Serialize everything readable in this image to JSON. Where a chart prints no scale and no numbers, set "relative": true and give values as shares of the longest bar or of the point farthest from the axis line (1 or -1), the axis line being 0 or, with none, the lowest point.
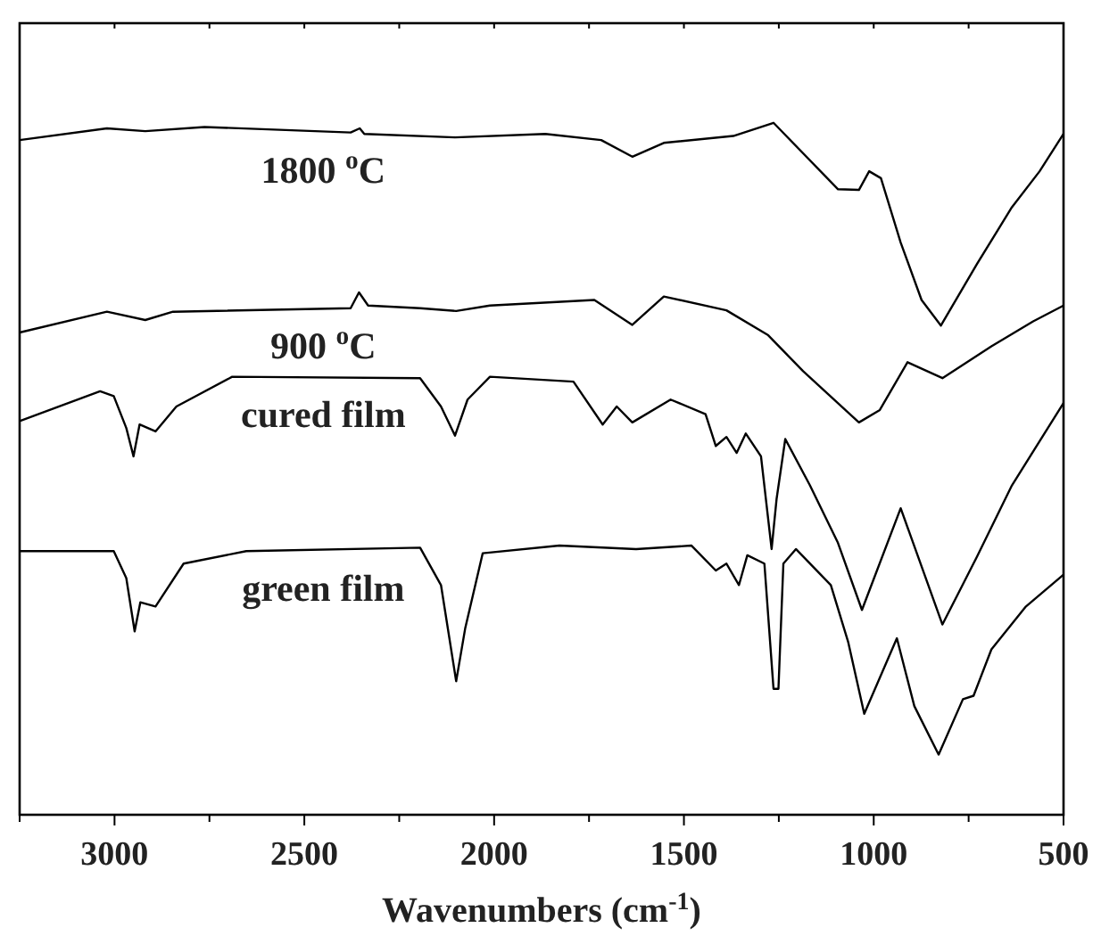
{
  "chart_data": {
    "type": "line",
    "relative": true,
    "xlabel": "Wavenumbers (cm$^{-1}$)",
    "xlim": [
      3250,
      500
    ],
    "xticks": [
      {
        "value": 3250,
        "label": null
      },
      3000,
      {
        "value": 2750,
        "label": null
      },
      2500,
      {
        "value": 2250,
        "label": null
      },
      2000,
      {
        "value": 1750,
        "label": null
      },
      1500,
      {
        "value": 1250,
        "label": null
      },
      1000,
      {
        "value": 750,
        "label": null
      },
      500
    ],
    "tick_labels": "x",
    "grid": false,
    "marker": "none",
    "line_style": "solid",
    "series": [
      {
        "name": "1800 $^{o}$C",
        "color": "#000000",
        "x": [
          3250,
          3020,
          2919,
          2763,
          2378,
          2354,
          2342,
          2103,
          1865,
          1718,
          1636,
          1553,
          1370,
          1264,
          1094,
          1039,
          1012,
          981,
          929,
          874,
          823,
          728,
          636,
          563,
          500
        ],
        "values": [
          0.975,
          0.992,
          0.988,
          0.994,
          0.986,
          0.992,
          0.984,
          0.979,
          0.984,
          0.975,
          0.951,
          0.971,
          0.981,
          1,
          0.904,
          0.903,
          0.93,
          0.92,
          0.827,
          0.744,
          0.707,
          0.796,
          0.878,
          0.93,
          0.984
        ]
      },
      {
        "name": "900 $^{o}$C",
        "color": "#000000",
        "x": [
          3250,
          3020,
          2919,
          2846,
          2378,
          2356,
          2332,
          2195,
          2100,
          2011,
          1736,
          1636,
          1553,
          1388,
          1278,
          1186,
          1039,
          984,
          911,
          819,
          690,
          580,
          500
        ],
        "values": [
          0.697,
          0.727,
          0.715,
          0.727,
          0.732,
          0.755,
          0.736,
          0.732,
          0.728,
          0.736,
          0.744,
          0.708,
          0.749,
          0.729,
          0.693,
          0.641,
          0.567,
          0.585,
          0.654,
          0.631,
          0.677,
          0.713,
          0.736
        ]
      },
      {
        "name": "cured film",
        "color": "#000000",
        "x": [
          3250,
          3038,
          3002,
          2969,
          2950,
          2934,
          2892,
          2837,
          2690,
          2195,
          2140,
          2103,
          2070,
          2011,
          1791,
          1714,
          1677,
          1636,
          1535,
          1443,
          1416,
          1388,
          1361,
          1337,
          1297,
          1269,
          1256,
          1233,
          1168,
          1095,
          1031,
          929,
          819,
          728,
          636,
          500
        ],
        "values": [
          0.569,
          0.612,
          0.605,
          0.559,
          0.518,
          0.564,
          0.554,
          0.59,
          0.633,
          0.631,
          0.59,
          0.548,
          0.6,
          0.633,
          0.626,
          0.564,
          0.59,
          0.567,
          0.6,
          0.579,
          0.533,
          0.546,
          0.523,
          0.551,
          0.518,
          0.384,
          0.456,
          0.543,
          0.476,
          0.394,
          0.296,
          0.443,
          0.275,
          0.373,
          0.476,
          0.595
        ]
      },
      {
        "name": "green film",
        "color": "#000000",
        "x": [
          3250,
          3002,
          2969,
          2947,
          2932,
          2892,
          2818,
          2653,
          2195,
          2140,
          2100,
          2076,
          2030,
          1828,
          1626,
          1480,
          1416,
          1388,
          1355,
          1333,
          1288,
          1264,
          1251,
          1238,
          1205,
          1113,
          1067,
          1025,
          939,
          893,
          829,
          765,
          737,
          690,
          599,
          500
        ],
        "values": [
          0.381,
          0.381,
          0.342,
          0.265,
          0.307,
          0.301,
          0.363,
          0.381,
          0.386,
          0.332,
          0.193,
          0.27,
          0.378,
          0.389,
          0.384,
          0.389,
          0.353,
          0.363,
          0.332,
          0.375,
          0.363,
          0.182,
          0.182,
          0.363,
          0.384,
          0.332,
          0.249,
          0.146,
          0.255,
          0.157,
          0.087,
          0.167,
          0.172,
          0.239,
          0.301,
          0.347
        ]
      }
    ]
  }
}
